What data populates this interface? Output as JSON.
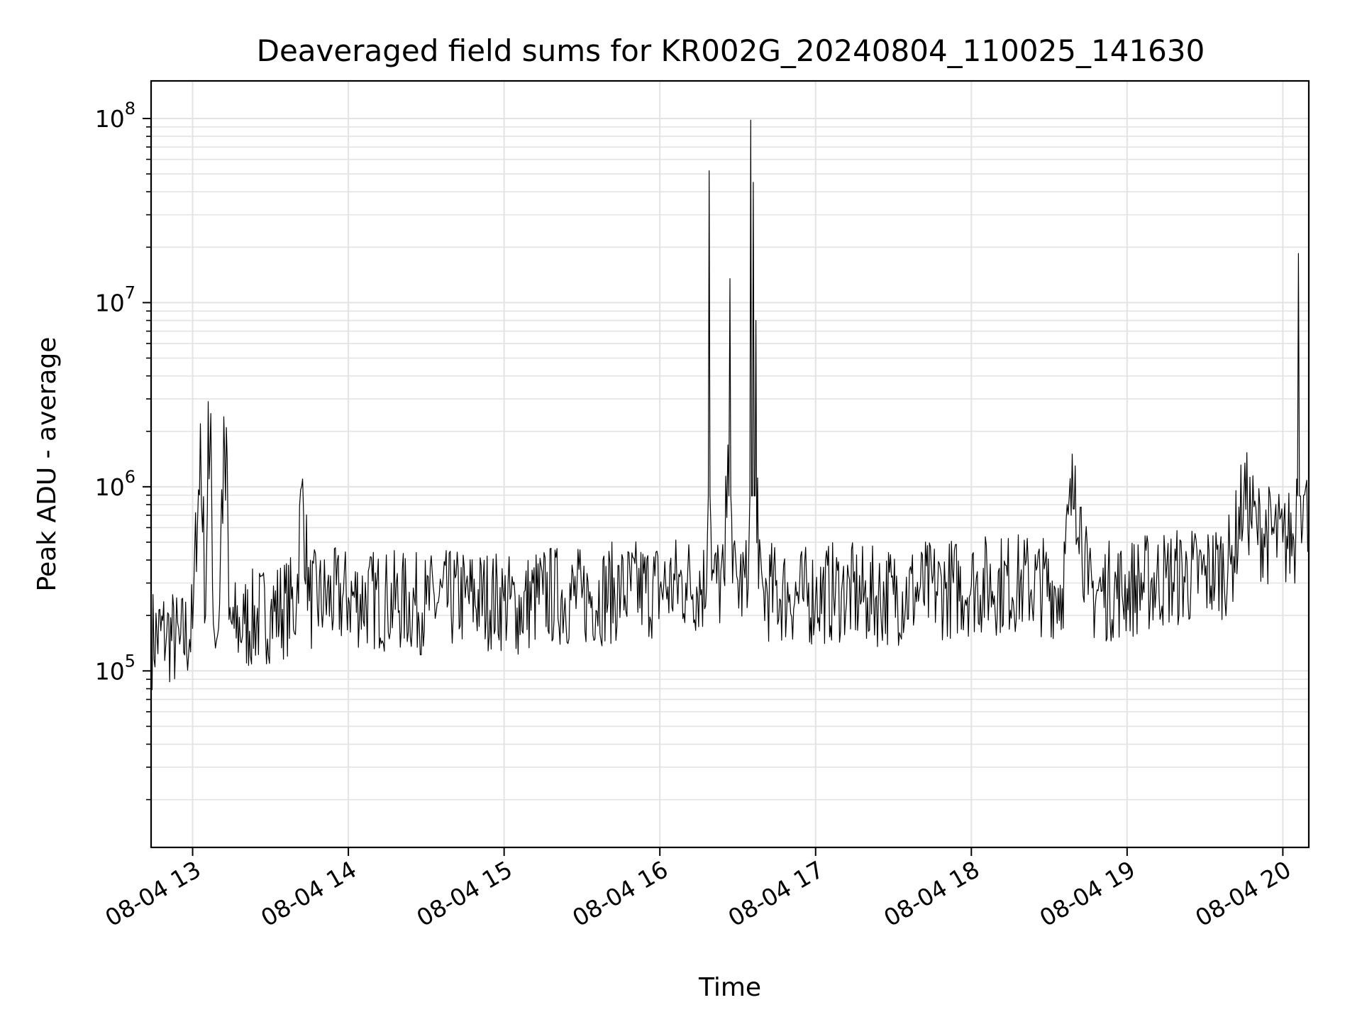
{
  "chart_data": {
    "type": "line",
    "title": "Deaveraged field sums for KR002G_20240804_110025_141630",
    "xlabel": "Time",
    "ylabel": "Peak ADU - average",
    "yscale": "log",
    "ylim": [
      11000,
      160000000
    ],
    "xlim": [
      "2024-08-04 12:44",
      "2024-08-04 20:10"
    ],
    "grid": true,
    "legend": "none",
    "line_color": "#000000",
    "x_ticks": [
      {
        "value": "2024-08-04 13:00",
        "label": "08-04 13"
      },
      {
        "value": "2024-08-04 14:00",
        "label": "08-04 14"
      },
      {
        "value": "2024-08-04 15:00",
        "label": "08-04 15"
      },
      {
        "value": "2024-08-04 16:00",
        "label": "08-04 16"
      },
      {
        "value": "2024-08-04 17:00",
        "label": "08-04 17"
      },
      {
        "value": "2024-08-04 18:00",
        "label": "08-04 18"
      },
      {
        "value": "2024-08-04 19:00",
        "label": "08-04 19"
      },
      {
        "value": "2024-08-04 20:00",
        "label": "08-04 20"
      }
    ],
    "y_ticks": [
      {
        "value": 100000,
        "base": "10",
        "exp": "5"
      },
      {
        "value": 1000000,
        "base": "10",
        "exp": "6"
      },
      {
        "value": 10000000,
        "base": "10",
        "exp": "7"
      },
      {
        "value": 100000000,
        "base": "10",
        "exp": "8"
      }
    ],
    "series": [
      {
        "x": [
          "2024-08-04 12:44",
          "2024-08-04 12:50",
          "2024-08-04 12:55",
          "2024-08-04 13:00",
          "2024-08-04 13:03",
          "2024-08-04 13:05",
          "2024-08-04 13:06",
          "2024-08-04 13:07",
          "2024-08-04 13:08",
          "2024-08-04 13:10",
          "2024-08-04 13:12",
          "2024-08-04 13:13",
          "2024-08-04 13:14",
          "2024-08-04 13:16",
          "2024-08-04 13:20",
          "2024-08-04 13:30",
          "2024-08-04 13:40",
          "2024-08-04 13:42",
          "2024-08-04 13:45",
          "2024-08-04 14:00",
          "2024-08-04 14:15",
          "2024-08-04 14:30",
          "2024-08-04 14:45",
          "2024-08-04 15:00",
          "2024-08-04 15:05",
          "2024-08-04 15:15",
          "2024-08-04 15:30",
          "2024-08-04 15:45",
          "2024-08-04 16:00",
          "2024-08-04 16:10",
          "2024-08-04 16:18",
          "2024-08-04 16:19",
          "2024-08-04 16:20",
          "2024-08-04 16:25",
          "2024-08-04 16:27",
          "2024-08-04 16:28",
          "2024-08-04 16:30",
          "2024-08-04 16:34",
          "2024-08-04 16:35",
          "2024-08-04 16:36",
          "2024-08-04 16:37",
          "2024-08-04 16:38",
          "2024-08-04 16:40",
          "2024-08-04 16:50",
          "2024-08-04 16:55",
          "2024-08-04 17:00",
          "2024-08-04 17:10",
          "2024-08-04 17:20",
          "2024-08-04 17:30",
          "2024-08-04 17:40",
          "2024-08-04 17:50",
          "2024-08-04 18:00",
          "2024-08-04 18:20",
          "2024-08-04 18:35",
          "2024-08-04 18:40",
          "2024-08-04 18:45",
          "2024-08-04 18:50",
          "2024-08-04 19:00",
          "2024-08-04 19:15",
          "2024-08-04 19:30",
          "2024-08-04 19:40",
          "2024-08-04 19:45",
          "2024-08-04 19:50",
          "2024-08-04 20:00",
          "2024-08-04 20:05",
          "2024-08-04 20:06",
          "2024-08-04 20:08",
          "2024-08-04 20:10"
        ],
        "y": [
          150000,
          160000,
          140000,
          170000,
          2200000,
          200000,
          2900000,
          2500000,
          180000,
          170000,
          2400000,
          2100000,
          190000,
          170000,
          180000,
          210000,
          230000,
          1000000,
          240000,
          250000,
          240000,
          230000,
          250000,
          240000,
          220000,
          260000,
          250000,
          270000,
          280000,
          300000,
          290000,
          52000000,
          310000,
          290000,
          13500000,
          300000,
          310000,
          280000,
          98000000,
          45000000,
          8000000,
          280000,
          270000,
          260000,
          250000,
          260000,
          270000,
          250000,
          260000,
          270000,
          280000,
          290000,
          300000,
          280000,
          1300000,
          260000,
          270000,
          280000,
          320000,
          330000,
          380000,
          900000,
          600000,
          500000,
          550000,
          18500000,
          900000,
          600000
        ]
      }
    ]
  }
}
